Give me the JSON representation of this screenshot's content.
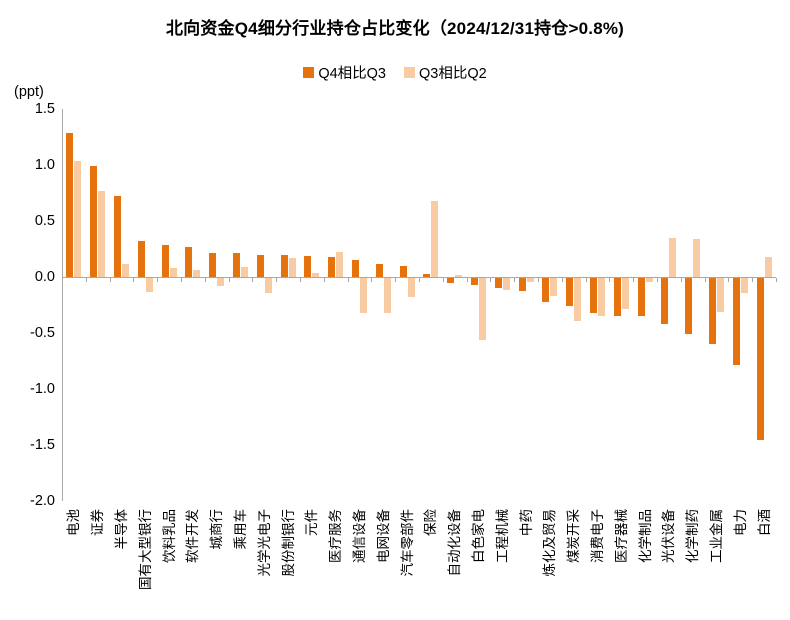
{
  "title": "北向资金Q4细分行业持仓占比变化（2024/12/31持仓>0.8%)",
  "y_axis_unit": "(ppt)",
  "colors": {
    "q4_bar": "#e5720d",
    "q3_bar": "#f9cba2",
    "axis": "#a8a8a8",
    "text": "#000000"
  },
  "chart_data": {
    "type": "bar",
    "title": "北向资金Q4细分行业持仓占比变化（2024/12/31持仓>0.8%)",
    "ylabel": "(ppt)",
    "ylim": [
      -2.0,
      1.5
    ],
    "yticks": [
      1.5,
      1.0,
      0.5,
      0.0,
      -0.5,
      -1.0,
      -1.5,
      -2.0
    ],
    "grid": false,
    "legend_position": "top-center",
    "categories": [
      "电池",
      "证券",
      "半导体",
      "国有大型银行",
      "饮料乳品",
      "软件开发",
      "城商行",
      "乘用车",
      "光学光电子",
      "股份制银行",
      "元件",
      "医疗服务",
      "通信设备",
      "电网设备",
      "汽车零部件",
      "保险",
      "自动化设备",
      "白色家电",
      "工程机械",
      "中药",
      "炼化及贸易",
      "煤炭开采",
      "消费电子",
      "医疗器械",
      "化学制品",
      "光伏设备",
      "化学制药",
      "工业金属",
      "电力",
      "白酒"
    ],
    "series": [
      {
        "name": "Q4相比Q3",
        "color": "#e5720d",
        "values": [
          1.29,
          0.99,
          0.72,
          0.32,
          0.29,
          0.27,
          0.21,
          0.21,
          0.2,
          0.2,
          0.19,
          0.18,
          0.15,
          0.12,
          0.1,
          0.03,
          -0.04,
          -0.06,
          -0.09,
          -0.11,
          -0.21,
          -0.25,
          -0.31,
          -0.34,
          -0.34,
          -0.41,
          -0.5,
          -0.59,
          -0.77,
          -1.44
        ]
      },
      {
        "name": "Q3相比Q2",
        "color": "#f9cba2",
        "values": [
          1.04,
          0.77,
          0.12,
          -0.12,
          0.08,
          0.06,
          -0.07,
          0.09,
          -0.13,
          0.17,
          0.04,
          0.22,
          -0.31,
          -0.31,
          -0.17,
          0.68,
          0.02,
          -0.55,
          -0.1,
          -0.03,
          -0.16,
          -0.38,
          -0.34,
          -0.27,
          -0.03,
          0.35,
          0.34,
          -0.3,
          -0.13,
          0.18
        ]
      }
    ]
  }
}
